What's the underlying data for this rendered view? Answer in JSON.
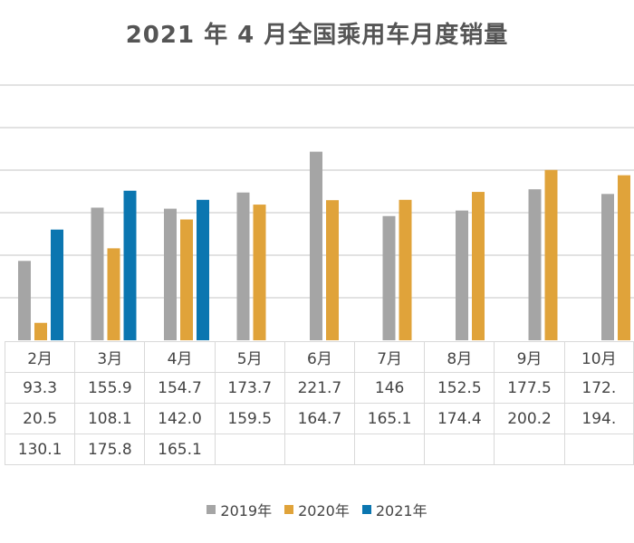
{
  "chart_data": {
    "type": "bar",
    "title": "2021 年 4 月全国乘用车月度销量",
    "categories": [
      "2月",
      "3月",
      "4月",
      "5月",
      "6月",
      "7月",
      "8月",
      "9月",
      "10月"
    ],
    "ylim": [
      0,
      300
    ],
    "grid": true,
    "legend_position": "bottom",
    "series": [
      {
        "name": "2019年",
        "color": "#a5a5a5",
        "values": [
          93.3,
          155.9,
          154.7,
          173.7,
          221.7,
          146,
          152.5,
          177.5,
          172
        ]
      },
      {
        "name": "2020年",
        "color": "#e0a33a",
        "values": [
          20.5,
          108.1,
          142.0,
          159.5,
          164.7,
          165.1,
          174.4,
          200.2,
          194
        ]
      },
      {
        "name": "2021年",
        "color": "#0b76b0",
        "values": [
          130.1,
          175.8,
          165.1,
          null,
          null,
          null,
          null,
          null,
          null
        ]
      }
    ],
    "table": [
      [
        "93.3",
        "155.9",
        "154.7",
        "173.7",
        "221.7",
        "146",
        "152.5",
        "177.5",
        "172."
      ],
      [
        "20.5",
        "108.1",
        "142.0",
        "159.5",
        "164.7",
        "165.1",
        "174.4",
        "200.2",
        "194."
      ],
      [
        "130.1",
        "175.8",
        "165.1",
        "",
        "",
        "",
        "",
        "",
        ""
      ]
    ]
  }
}
